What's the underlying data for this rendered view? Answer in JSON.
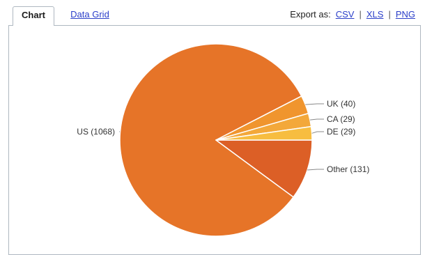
{
  "tabs": [
    {
      "label": "Chart",
      "active": true
    },
    {
      "label": "Data Grid",
      "active": false
    }
  ],
  "export": {
    "label": "Export as:",
    "options": [
      "CSV",
      "XLS",
      "PNG"
    ],
    "separator": "|"
  },
  "chart_data": {
    "type": "pie",
    "title": "",
    "slices": [
      {
        "label": "US",
        "value": 1068,
        "color": "#e67428"
      },
      {
        "label": "UK",
        "value": 40,
        "color": "#f0952e"
      },
      {
        "label": "CA",
        "value": 29,
        "color": "#f3a83a"
      },
      {
        "label": "DE",
        "value": 29,
        "color": "#f7bd40"
      },
      {
        "label": "Other",
        "value": 131,
        "color": "#dc5f26"
      }
    ],
    "slice_border_color": "#ffffff",
    "leader_line_color": "#888888",
    "background": "#ffffff"
  }
}
